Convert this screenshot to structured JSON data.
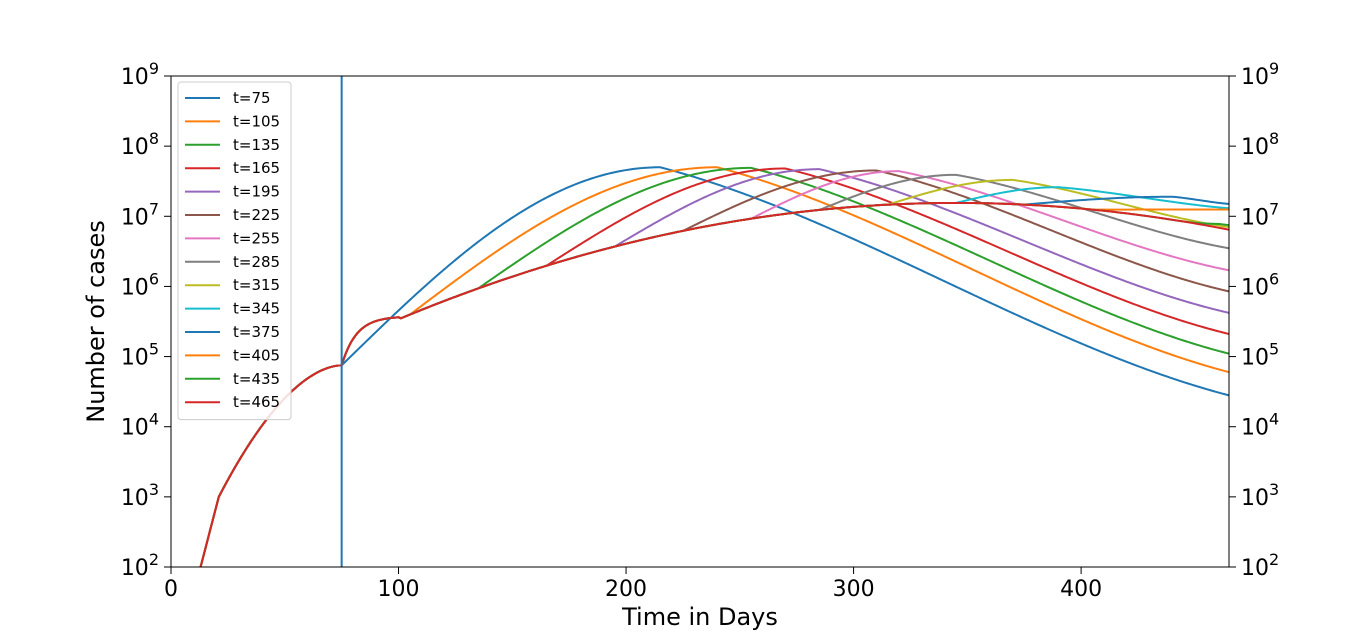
{
  "chart_data": {
    "type": "line",
    "title": "",
    "xlabel": "Time in Days",
    "ylabel": "Number of cases",
    "xlim": [
      0,
      465
    ],
    "ylim": [
      100,
      1000000000
    ],
    "yscale": "log",
    "secondary_y_axis": "mirrored on right",
    "grid": false,
    "legend_position": "upper-left",
    "x_ticks": [
      "0",
      "100",
      "200",
      "300",
      "400"
    ],
    "y_ticks": [
      {
        "base": "10",
        "exp": "2"
      },
      {
        "base": "10",
        "exp": "3"
      },
      {
        "base": "10",
        "exp": "4"
      },
      {
        "base": "10",
        "exp": "5"
      },
      {
        "base": "10",
        "exp": "6"
      },
      {
        "base": "10",
        "exp": "7"
      },
      {
        "base": "10",
        "exp": "8"
      },
      {
        "base": "10",
        "exp": "9"
      }
    ],
    "vertical_line": {
      "x": 75,
      "color": "#1f77b4"
    },
    "series": [
      {
        "name": "t=75",
        "intervention_day": 75,
        "color": "#1f77b4",
        "peak_day": 215,
        "peak_value": 50000000,
        "end_value": 28000
      },
      {
        "name": "t=105",
        "intervention_day": 105,
        "color": "#ff7f0e",
        "peak_day": 240,
        "peak_value": 50000000,
        "end_value": 60000
      },
      {
        "name": "t=135",
        "intervention_day": 135,
        "color": "#2ca02c",
        "peak_day": 255,
        "peak_value": 49000000,
        "end_value": 110000
      },
      {
        "name": "t=165",
        "intervention_day": 165,
        "color": "#d62728",
        "peak_day": 270,
        "peak_value": 48000000,
        "end_value": 210000
      },
      {
        "name": "t=195",
        "intervention_day": 195,
        "color": "#9467bd",
        "peak_day": 285,
        "peak_value": 47000000,
        "end_value": 420000
      },
      {
        "name": "t=225",
        "intervention_day": 225,
        "color": "#8c564b",
        "peak_day": 310,
        "peak_value": 45000000,
        "end_value": 850000
      },
      {
        "name": "t=255",
        "intervention_day": 255,
        "color": "#e377c2",
        "peak_day": 320,
        "peak_value": 44000000,
        "end_value": 1700000
      },
      {
        "name": "t=285",
        "intervention_day": 285,
        "color": "#7f7f7f",
        "peak_day": 345,
        "peak_value": 39000000,
        "end_value": 3500000
      },
      {
        "name": "t=315",
        "intervention_day": 315,
        "color": "#bcbd22",
        "peak_day": 370,
        "peak_value": 33000000,
        "end_value": 7000000
      },
      {
        "name": "t=345",
        "intervention_day": 345,
        "color": "#17becf",
        "peak_day": 390,
        "peak_value": 26000000,
        "end_value": 13000000
      },
      {
        "name": "t=375",
        "intervention_day": 375,
        "color": "#1f77b4",
        "peak_day": 440,
        "peak_value": 19000000,
        "end_value": 15000000
      },
      {
        "name": "t=405",
        "intervention_day": 405,
        "color": "#ff7f0e",
        "peak_day": 465,
        "peak_value": 12500000,
        "end_value": 12500000
      },
      {
        "name": "t=435",
        "intervention_day": 435,
        "color": "#2ca02c",
        "peak_day": 460,
        "peak_value": 7800000,
        "end_value": 7500000
      },
      {
        "name": "t=465",
        "intervention_day": 465,
        "color": "#d62728",
        "peak_day": 350,
        "peak_value": 16000000,
        "end_value": 5000000
      }
    ]
  }
}
